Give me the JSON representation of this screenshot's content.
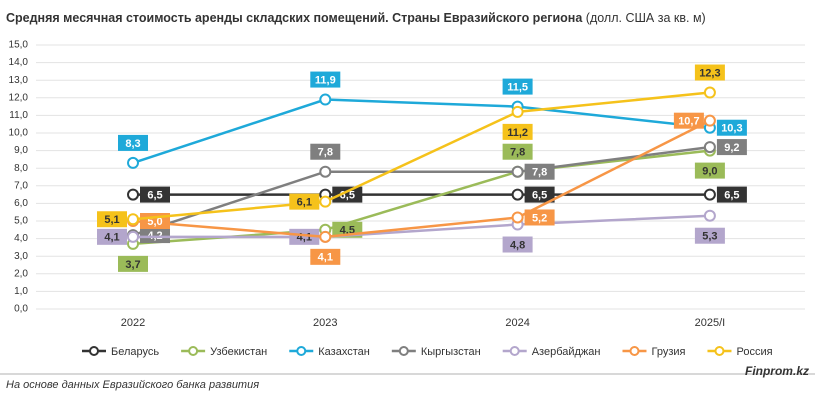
{
  "chart_data": {
    "type": "line",
    "title": "Средняя месячная стоимость аренды складских помещений. Страны Евразийского региона",
    "title_unit": "(долл. США за кв. м)",
    "categories": [
      "2022",
      "2023",
      "2024",
      "2025/I"
    ],
    "series": [
      {
        "name": "Беларусь",
        "color": "#333333",
        "values": [
          6.5,
          6.5,
          6.5,
          6.5
        ],
        "value_labels": [
          "6,5",
          "6,5",
          "6,5",
          "6,5"
        ]
      },
      {
        "name": "Узбекистан",
        "color": "#9bbb59",
        "values": [
          3.7,
          4.5,
          7.8,
          9.0
        ],
        "value_labels": [
          "3,7",
          "4,5",
          "7,8",
          "9,0"
        ]
      },
      {
        "name": "Казахстан",
        "color": "#1ea9d9",
        "values": [
          8.3,
          11.9,
          11.5,
          10.3
        ],
        "value_labels": [
          "8,3",
          "11,9",
          "11,5",
          "10,3"
        ]
      },
      {
        "name": "Кыргызстан",
        "color": "#7f7f7f",
        "values": [
          4.2,
          7.8,
          7.8,
          9.2
        ],
        "value_labels": [
          "4,2",
          "7,8",
          "7,8",
          "9,2"
        ]
      },
      {
        "name": "Азербайджан",
        "color": "#b3a6cc",
        "values": [
          4.1,
          4.1,
          4.8,
          5.3
        ],
        "value_labels": [
          "4,1",
          "4,1",
          "4,8",
          "5,3"
        ]
      },
      {
        "name": "Грузия",
        "color": "#f79646",
        "values": [
          5.0,
          4.1,
          5.2,
          10.7
        ],
        "value_labels": [
          "5,0",
          "4,1",
          "5,2",
          "10,7"
        ]
      },
      {
        "name": "Россия",
        "color": "#f5c21b",
        "values": [
          5.1,
          6.1,
          11.2,
          12.3
        ],
        "value_labels": [
          "5,1",
          "6,1",
          "11,2",
          "12,3"
        ]
      }
    ],
    "ylim": [
      0,
      15
    ],
    "yticks": [
      {
        "value": 0,
        "label": "0,0"
      },
      {
        "value": 1,
        "label": "1,0"
      },
      {
        "value": 2,
        "label": "2,0"
      },
      {
        "value": 3,
        "label": "3,0"
      },
      {
        "value": 4,
        "label": "4,0"
      },
      {
        "value": 5,
        "label": "5,0"
      },
      {
        "value": 6,
        "label": "6,0"
      },
      {
        "value": 7,
        "label": "7,0"
      },
      {
        "value": 8,
        "label": "8,0"
      },
      {
        "value": 9,
        "label": "9,0"
      },
      {
        "value": 10,
        "label": "10,0"
      },
      {
        "value": 11,
        "label": "11,0"
      },
      {
        "value": 12,
        "label": "12,0"
      },
      {
        "value": 13,
        "label": "13,0"
      },
      {
        "value": 14,
        "label": "14,0"
      },
      {
        "value": 15,
        "label": "15,0"
      }
    ],
    "grid": true,
    "legend": "bottom",
    "source": "На основе данных Евразийского банка развития",
    "brand": "Finprom.kz"
  }
}
